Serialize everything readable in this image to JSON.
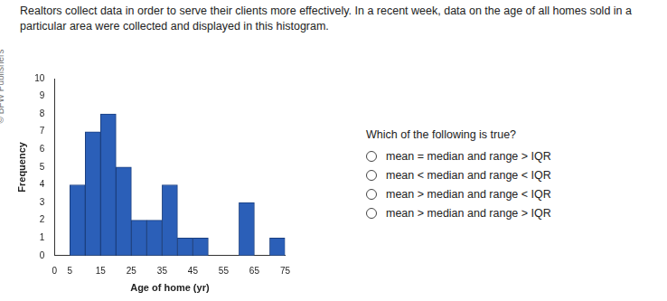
{
  "intro": "Realtors collect data in order to serve their clients more effectively. In a recent week, data on the age of all homes sold in a particular area were collected and displayed in this histogram.",
  "watermark": "© BFW Publishers",
  "question": "Which of the following is true?",
  "options": [
    "mean = median and range > IQR",
    "mean < median and range < IQR",
    "mean > median and range < IQR",
    "mean > median and range > IQR"
  ],
  "chart_data": {
    "type": "histogram",
    "x_label": "Age of home (yr)",
    "y_label": "Frequency",
    "bins": [
      5,
      10,
      15,
      20,
      25,
      30,
      35,
      40,
      45,
      50,
      55,
      60,
      65,
      70,
      75
    ],
    "values": [
      4,
      7,
      8,
      5,
      2,
      2,
      4,
      1,
      1,
      0,
      0,
      3,
      0,
      1
    ],
    "color": "#2b5fb8",
    "xlim": [
      0,
      75
    ],
    "xticks": [
      0,
      5,
      15,
      25,
      35,
      45,
      55,
      65,
      75
    ],
    "ylim": [
      0,
      10
    ],
    "yticks": [
      0,
      1,
      2,
      3,
      4,
      5,
      6,
      7,
      8,
      9,
      10
    ],
    "grid": false
  }
}
